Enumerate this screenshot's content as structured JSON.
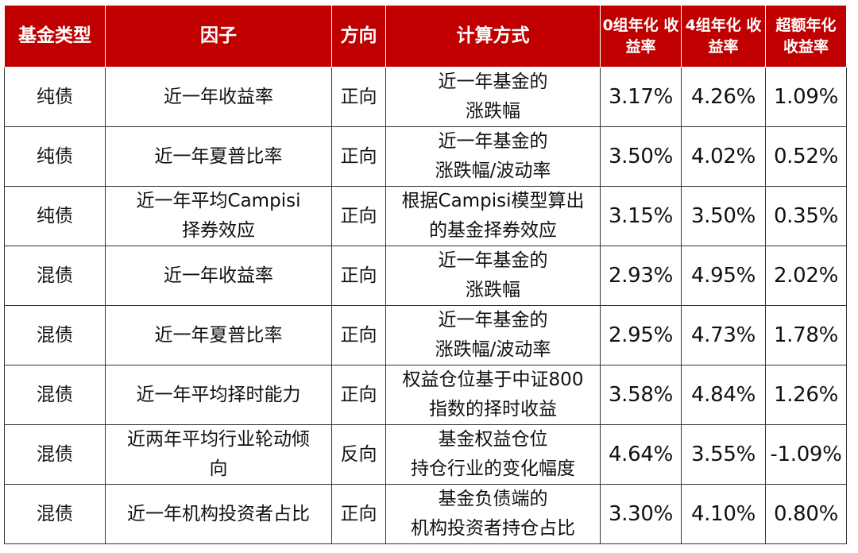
{
  "table": {
    "headers": [
      "基金类型",
      "因子",
      "方向",
      "计算方式",
      [
        "0组年化",
        "收益率"
      ],
      [
        "4组年化",
        "收益率"
      ],
      [
        "超额年化",
        "收益率"
      ]
    ],
    "rows": [
      {
        "type": "纯债",
        "factor": [
          "近一年收益率"
        ],
        "direction": "正向",
        "method": [
          "近一年基金的",
          "涨跌幅"
        ],
        "g0": "3.17%",
        "g4": "4.26%",
        "excess": "1.09%"
      },
      {
        "type": "纯债",
        "factor": [
          "近一年夏普比率"
        ],
        "direction": "正向",
        "method": [
          "近一年基金的",
          "涨跌幅/波动率"
        ],
        "g0": "3.50%",
        "g4": "4.02%",
        "excess": "0.52%"
      },
      {
        "type": "纯债",
        "factor": [
          "近一年平均Campisi",
          "择券效应"
        ],
        "direction": "正向",
        "method": [
          "根据Campisi模型算出",
          "的基金择券效应"
        ],
        "g0": "3.15%",
        "g4": "3.50%",
        "excess": "0.35%"
      },
      {
        "type": "混债",
        "factor": [
          "近一年收益率"
        ],
        "direction": "正向",
        "method": [
          "近一年基金的",
          "涨跌幅"
        ],
        "g0": "2.93%",
        "g4": "4.95%",
        "excess": "2.02%"
      },
      {
        "type": "混债",
        "factor": [
          "近一年夏普比率"
        ],
        "direction": "正向",
        "method": [
          "近一年基金的",
          "涨跌幅/波动率"
        ],
        "g0": "2.95%",
        "g4": "4.73%",
        "excess": "1.78%"
      },
      {
        "type": "混债",
        "factor": [
          "近一年平均择时能力"
        ],
        "direction": "正向",
        "method": [
          "权益仓位基于中证800",
          "指数的择时收益"
        ],
        "g0": "3.58%",
        "g4": "4.84%",
        "excess": "1.26%"
      },
      {
        "type": "混债",
        "factor": [
          "近两年平均行业轮动倾",
          "向"
        ],
        "direction": "反向",
        "method": [
          "基金权益仓位",
          "持仓行业的变化幅度"
        ],
        "g0": "4.64%",
        "g4": "3.55%",
        "excess": "-1.09%"
      },
      {
        "type": "混债",
        "factor": [
          "近一年机构投资者占比"
        ],
        "direction": "正向",
        "method": [
          "基金负债端的",
          "机构投资者持仓占比"
        ],
        "g0": "3.30%",
        "g4": "4.10%",
        "excess": "0.80%"
      }
    ]
  },
  "colors": {
    "header_bg": "#c00000",
    "header_text": "#ffffff",
    "border": "#333333"
  }
}
